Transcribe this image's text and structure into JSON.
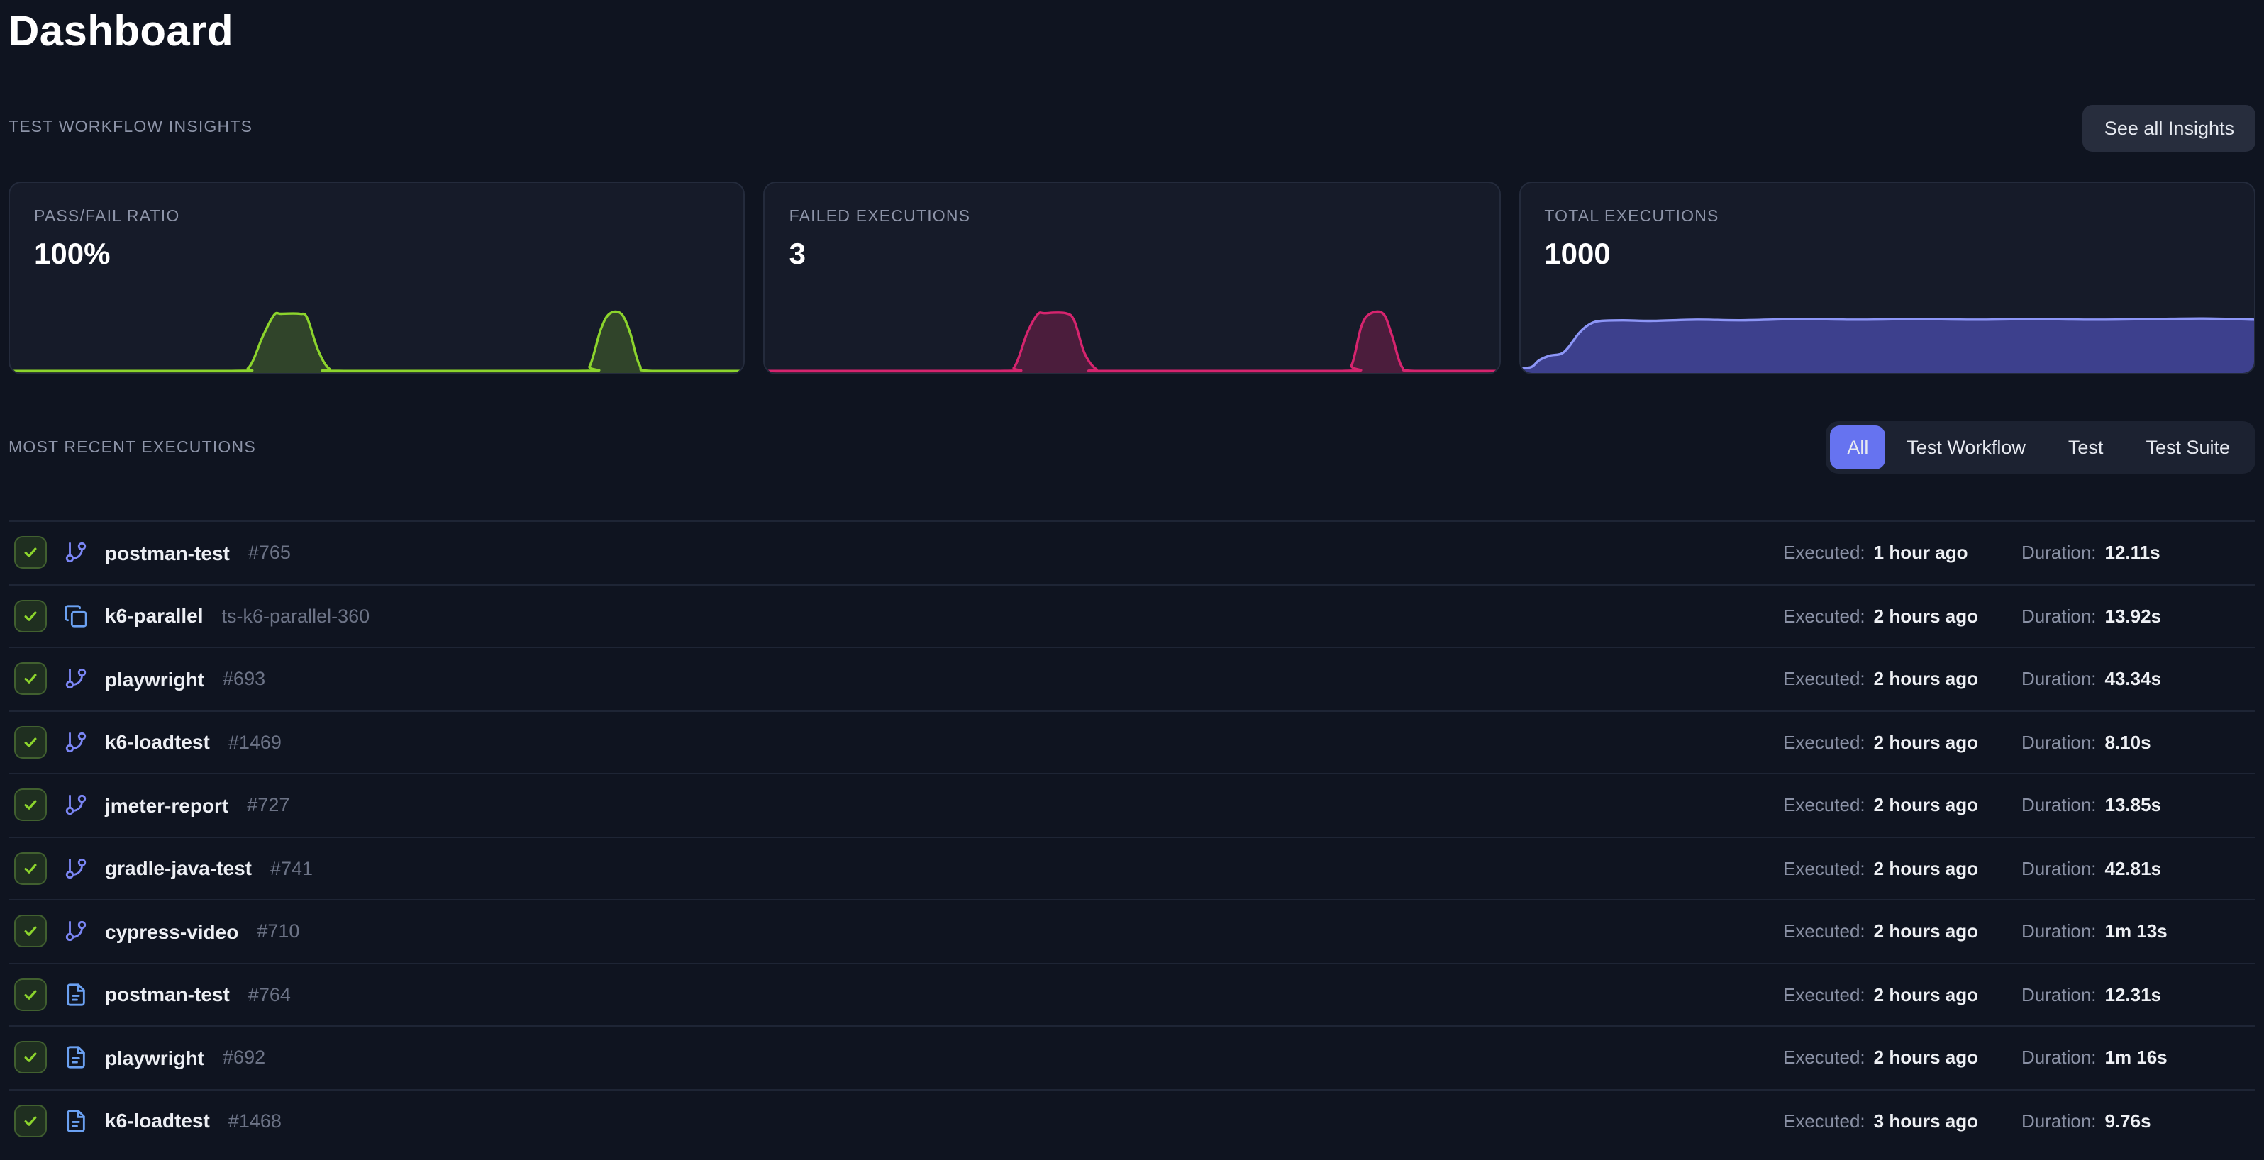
{
  "page": {
    "title": "Dashboard"
  },
  "colors": {
    "background": "#0f1420",
    "card_background": "#161b29",
    "accent": "#6673f0",
    "pass_green": "#8cd42c",
    "fail_pink": "#d6246e",
    "total_indigo": "#8d96f7"
  },
  "insights": {
    "section_label": "TEST WORKFLOW INSIGHTS",
    "see_all_label": "See all Insights",
    "cards": [
      {
        "label": "PASS/FAIL RATIO",
        "value": "100%"
      },
      {
        "label": "FAILED EXECUTIONS",
        "value": "3"
      },
      {
        "label": "TOTAL EXECUTIONS",
        "value": "1000"
      }
    ]
  },
  "chart_data": [
    {
      "type": "area",
      "title": "PASS/FAIL RATIO",
      "current_value": "100%",
      "xlabel": "",
      "ylabel": "",
      "grid": false,
      "axes_hidden": true,
      "x_range": [
        0,
        100
      ],
      "ylim": [
        0,
        1
      ],
      "line_color": "#8cd42c",
      "fill_color": "rgba(140,212,44,0.22)",
      "points": [
        [
          0,
          0
        ],
        [
          30,
          0
        ],
        [
          32.5,
          0.05
        ],
        [
          34.5,
          0.6
        ],
        [
          36,
          0.95
        ],
        [
          37,
          0.97
        ],
        [
          39.5,
          0.97
        ],
        [
          40.5,
          0.9
        ],
        [
          42,
          0.35
        ],
        [
          43.5,
          0.04
        ],
        [
          45.5,
          0
        ],
        [
          77.5,
          0
        ],
        [
          79,
          0.08
        ],
        [
          80.5,
          0.7
        ],
        [
          81.7,
          0.97
        ],
        [
          83.3,
          0.97
        ],
        [
          84.5,
          0.65
        ],
        [
          85.8,
          0.1
        ],
        [
          87.5,
          0
        ],
        [
          100,
          0
        ]
      ]
    },
    {
      "type": "area",
      "title": "FAILED EXECUTIONS",
      "current_value": "3",
      "xlabel": "",
      "ylabel": "",
      "grid": false,
      "axes_hidden": true,
      "x_range": [
        0,
        100
      ],
      "ylim": [
        0,
        1
      ],
      "line_color": "#d6246e",
      "fill_color": "rgba(214,36,110,0.28)",
      "points": [
        [
          0,
          0
        ],
        [
          32,
          0
        ],
        [
          34,
          0.06
        ],
        [
          35.8,
          0.65
        ],
        [
          37.2,
          0.96
        ],
        [
          38.2,
          0.98
        ],
        [
          41,
          0.98
        ],
        [
          42.2,
          0.85
        ],
        [
          43.6,
          0.3
        ],
        [
          45.2,
          0.03
        ],
        [
          47,
          0
        ],
        [
          78.5,
          0
        ],
        [
          80,
          0.1
        ],
        [
          81.3,
          0.75
        ],
        [
          82.5,
          0.97
        ],
        [
          84.3,
          0.97
        ],
        [
          85.5,
          0.6
        ],
        [
          86.8,
          0.08
        ],
        [
          88.5,
          0
        ],
        [
          100,
          0
        ]
      ]
    },
    {
      "type": "area",
      "title": "TOTAL EXECUTIONS",
      "current_value": "1000",
      "xlabel": "",
      "ylabel": "",
      "grid": false,
      "axes_hidden": true,
      "x_range": [
        0,
        100
      ],
      "ylim": [
        0,
        1
      ],
      "line_color": "#8d96f7",
      "fill_color": "rgba(99,102,241,0.5)",
      "points": [
        [
          0,
          0.04
        ],
        [
          1.5,
          0.07
        ],
        [
          2.5,
          0.18
        ],
        [
          4,
          0.26
        ],
        [
          5.5,
          0.29
        ],
        [
          6.5,
          0.4
        ],
        [
          8,
          0.65
        ],
        [
          9.5,
          0.8
        ],
        [
          11,
          0.85
        ],
        [
          14,
          0.86
        ],
        [
          18,
          0.85
        ],
        [
          24,
          0.87
        ],
        [
          30,
          0.86
        ],
        [
          38,
          0.88
        ],
        [
          46,
          0.87
        ],
        [
          54,
          0.88
        ],
        [
          62,
          0.87
        ],
        [
          70,
          0.88
        ],
        [
          78,
          0.87
        ],
        [
          86,
          0.88
        ],
        [
          93,
          0.89
        ],
        [
          100,
          0.87
        ]
      ]
    }
  ],
  "executions": {
    "section_label": "MOST RECENT EXECUTIONS",
    "filters": [
      "All",
      "Test Workflow",
      "Test",
      "Test Suite"
    ],
    "active_filter": "All",
    "executed_label": "Executed:",
    "duration_label": "Duration:",
    "rows": [
      {
        "status": "passed",
        "icon": "git-branch-icon",
        "name": "postman-test",
        "id": "#765",
        "executed": "1 hour ago",
        "duration": "12.11s"
      },
      {
        "status": "passed",
        "icon": "stack-icon",
        "name": "k6-parallel",
        "id": "ts-k6-parallel-360",
        "executed": "2 hours ago",
        "duration": "13.92s"
      },
      {
        "status": "passed",
        "icon": "git-branch-icon",
        "name": "playwright",
        "id": "#693",
        "executed": "2 hours ago",
        "duration": "43.34s"
      },
      {
        "status": "passed",
        "icon": "git-branch-icon",
        "name": "k6-loadtest",
        "id": "#1469",
        "executed": "2 hours ago",
        "duration": "8.10s"
      },
      {
        "status": "passed",
        "icon": "git-branch-icon",
        "name": "jmeter-report",
        "id": "#727",
        "executed": "2 hours ago",
        "duration": "13.85s"
      },
      {
        "status": "passed",
        "icon": "git-branch-icon",
        "name": "gradle-java-test",
        "id": "#741",
        "executed": "2 hours ago",
        "duration": "42.81s"
      },
      {
        "status": "passed",
        "icon": "git-branch-icon",
        "name": "cypress-video",
        "id": "#710",
        "executed": "2 hours ago",
        "duration": "1m 13s"
      },
      {
        "status": "passed",
        "icon": "file-icon",
        "name": "postman-test",
        "id": "#764",
        "executed": "2 hours ago",
        "duration": "12.31s"
      },
      {
        "status": "passed",
        "icon": "file-icon",
        "name": "playwright",
        "id": "#692",
        "executed": "2 hours ago",
        "duration": "1m 16s"
      },
      {
        "status": "passed",
        "icon": "file-icon",
        "name": "k6-loadtest",
        "id": "#1468",
        "executed": "3 hours ago",
        "duration": "9.76s"
      }
    ]
  }
}
